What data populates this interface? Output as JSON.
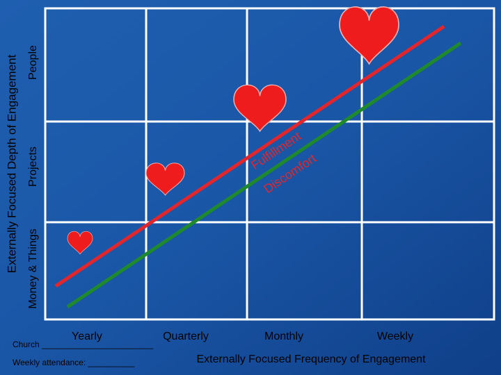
{
  "y_axis": {
    "title": "Externally Focused Depth of Engagement",
    "levels": [
      "Money & Things",
      "Projects",
      "People"
    ]
  },
  "x_axis": {
    "title": "Externally Focused Frequency of Engagement",
    "levels": [
      "Yearly",
      "Quarterly",
      "Monthly",
      "Weekly"
    ]
  },
  "line_labels": [
    "Fulfillment",
    "Discomfort"
  ],
  "footer": {
    "church": "Church ________________________",
    "attendance": "Weekly attendance: __________"
  }
}
